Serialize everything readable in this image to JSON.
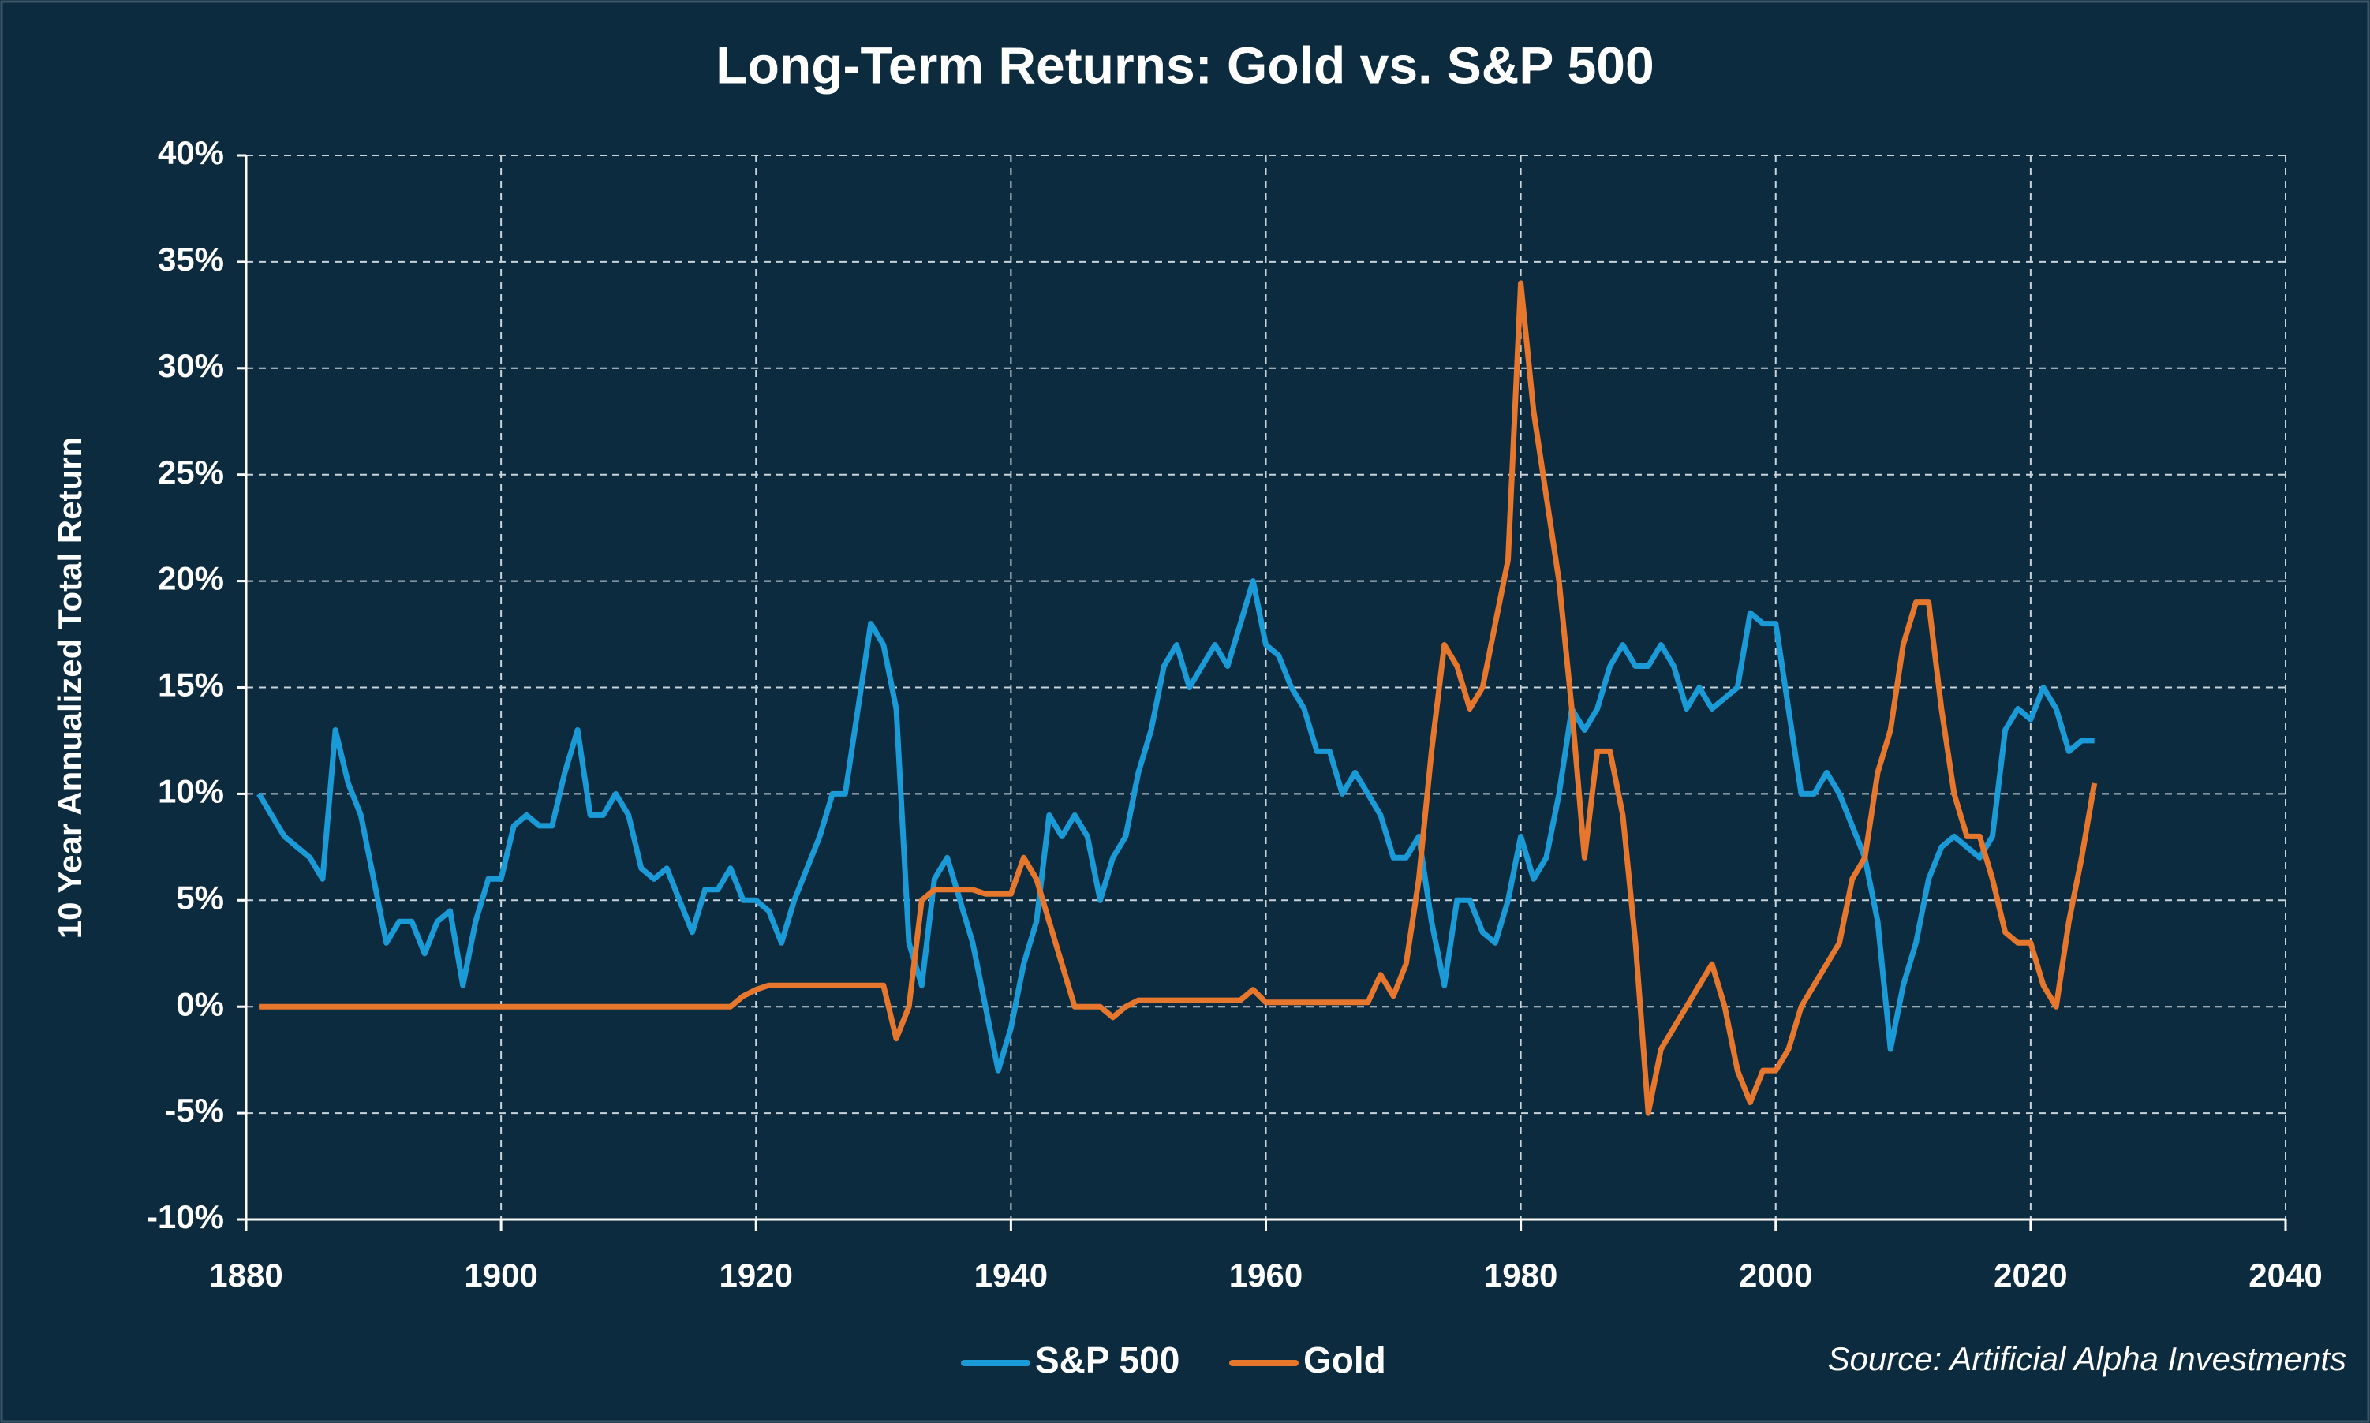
{
  "chart_data": {
    "type": "line",
    "title": "Long-Term Returns: Gold vs. S&P 500",
    "y_label": "10 Year Annualized Total Return",
    "source": "Source: Artificial Alpha Investments",
    "x": [
      1881,
      1882,
      1883,
      1884,
      1885,
      1886,
      1887,
      1888,
      1889,
      1890,
      1891,
      1892,
      1893,
      1894,
      1895,
      1896,
      1897,
      1898,
      1899,
      1900,
      1901,
      1902,
      1903,
      1904,
      1905,
      1906,
      1907,
      1908,
      1909,
      1910,
      1911,
      1912,
      1913,
      1914,
      1915,
      1916,
      1917,
      1918,
      1919,
      1920,
      1921,
      1922,
      1923,
      1924,
      1925,
      1926,
      1927,
      1928,
      1929,
      1930,
      1931,
      1932,
      1933,
      1934,
      1935,
      1936,
      1937,
      1938,
      1939,
      1940,
      1941,
      1942,
      1943,
      1944,
      1945,
      1946,
      1947,
      1948,
      1949,
      1950,
      1951,
      1952,
      1953,
      1954,
      1955,
      1956,
      1957,
      1958,
      1959,
      1960,
      1961,
      1962,
      1963,
      1964,
      1965,
      1966,
      1967,
      1968,
      1969,
      1970,
      1971,
      1972,
      1973,
      1974,
      1975,
      1976,
      1977,
      1978,
      1979,
      1980,
      1981,
      1982,
      1983,
      1984,
      1985,
      1986,
      1987,
      1988,
      1989,
      1990,
      1991,
      1992,
      1993,
      1994,
      1995,
      1996,
      1997,
      1998,
      1999,
      2000,
      2001,
      2002,
      2003,
      2004,
      2005,
      2006,
      2007,
      2008,
      2009,
      2010,
      2011,
      2012,
      2013,
      2014,
      2015,
      2016,
      2017,
      2018,
      2019,
      2020,
      2021,
      2022,
      2023,
      2024,
      2025
    ],
    "series": [
      {
        "name": "S&P 500",
        "color": "#1b9ad8",
        "values": [
          10,
          9,
          8,
          7.5,
          7,
          6,
          13,
          10.5,
          9,
          6,
          3,
          4,
          4,
          2.5,
          4,
          4.5,
          1,
          4,
          6,
          6,
          8.5,
          9,
          8.5,
          8.5,
          11,
          13,
          9,
          9,
          10,
          9,
          6.5,
          6,
          6.5,
          5,
          3.5,
          5.5,
          5.5,
          6.5,
          5,
          5,
          4.5,
          3,
          5,
          6.5,
          8,
          10,
          10,
          14,
          18,
          17,
          14,
          3,
          1,
          6,
          7,
          5,
          3,
          0,
          -3,
          -1,
          2,
          4,
          9,
          8,
          9,
          8,
          5,
          7,
          8,
          11,
          13,
          16,
          17,
          15,
          16,
          17,
          16,
          18,
          20,
          17,
          16.5,
          15,
          14,
          12,
          12,
          10,
          11,
          10,
          9,
          7,
          7,
          8,
          4,
          1,
          5,
          5,
          3.5,
          3,
          5,
          8,
          6,
          7,
          10,
          14,
          13,
          14,
          16,
          17,
          16,
          16,
          17,
          16,
          14,
          15,
          14,
          14.5,
          15,
          18.5,
          18,
          18,
          14,
          10,
          10,
          11,
          10,
          8.5,
          7,
          4,
          -2,
          1,
          3,
          6,
          7.5,
          8,
          7.5,
          7,
          8,
          13,
          14,
          13.5,
          15,
          14,
          12,
          12.5,
          12.5
        ]
      },
      {
        "name": "Gold",
        "color": "#e8772e",
        "values": [
          0,
          0,
          0,
          0,
          0,
          0,
          0,
          0,
          0,
          0,
          0,
          0,
          0,
          0,
          0,
          0,
          0,
          0,
          0,
          0,
          0,
          0,
          0,
          0,
          0,
          0,
          0,
          0,
          0,
          0,
          0,
          0,
          0,
          0,
          0,
          0,
          0,
          0,
          0.5,
          0.8,
          1,
          1,
          1,
          1,
          1,
          1,
          1,
          1,
          1,
          1,
          -1.5,
          0,
          5,
          5.5,
          5.5,
          5.5,
          5.5,
          5.3,
          5.3,
          5.3,
          7,
          6,
          4,
          2,
          0,
          0,
          0,
          -0.5,
          0,
          0.3,
          0.3,
          0.3,
          0.3,
          0.3,
          0.3,
          0.3,
          0.3,
          0.3,
          0.8,
          0.2,
          0.2,
          0.2,
          0.2,
          0.2,
          0.2,
          0.2,
          0.2,
          0.2,
          1.5,
          0.5,
          2,
          6,
          12,
          17,
          16,
          14,
          15,
          18,
          21,
          34,
          28,
          24,
          20,
          14,
          7,
          12,
          12,
          9,
          3,
          -5,
          -2,
          -1,
          0,
          1,
          2,
          0,
          -3,
          -4.5,
          -3,
          -3,
          -2,
          0,
          1,
          2,
          3,
          6,
          7,
          11,
          13,
          17,
          19,
          19,
          14,
          10,
          8,
          8,
          6,
          3.5,
          3,
          3,
          1,
          0,
          4,
          7,
          10.5
        ]
      }
    ],
    "xlim": [
      1880,
      2040
    ],
    "xticks": [
      1880,
      1900,
      1920,
      1940,
      1960,
      1980,
      2000,
      2020,
      2040
    ],
    "ylim": [
      -10,
      40
    ],
    "yticks": [
      {
        "value": -10,
        "label": "-10%"
      },
      {
        "value": -5,
        "label": "-5%"
      },
      {
        "value": 0,
        "label": "0%"
      },
      {
        "value": 5,
        "label": "5%"
      },
      {
        "value": 10,
        "label": "10%"
      },
      {
        "value": 15,
        "label": "15%"
      },
      {
        "value": 20,
        "label": "20%"
      },
      {
        "value": 25,
        "label": "25%"
      },
      {
        "value": 30,
        "label": "30%"
      },
      {
        "value": 35,
        "label": "35%"
      },
      {
        "value": 40,
        "label": "40%"
      }
    ],
    "grid": true,
    "legend": "bottom"
  }
}
